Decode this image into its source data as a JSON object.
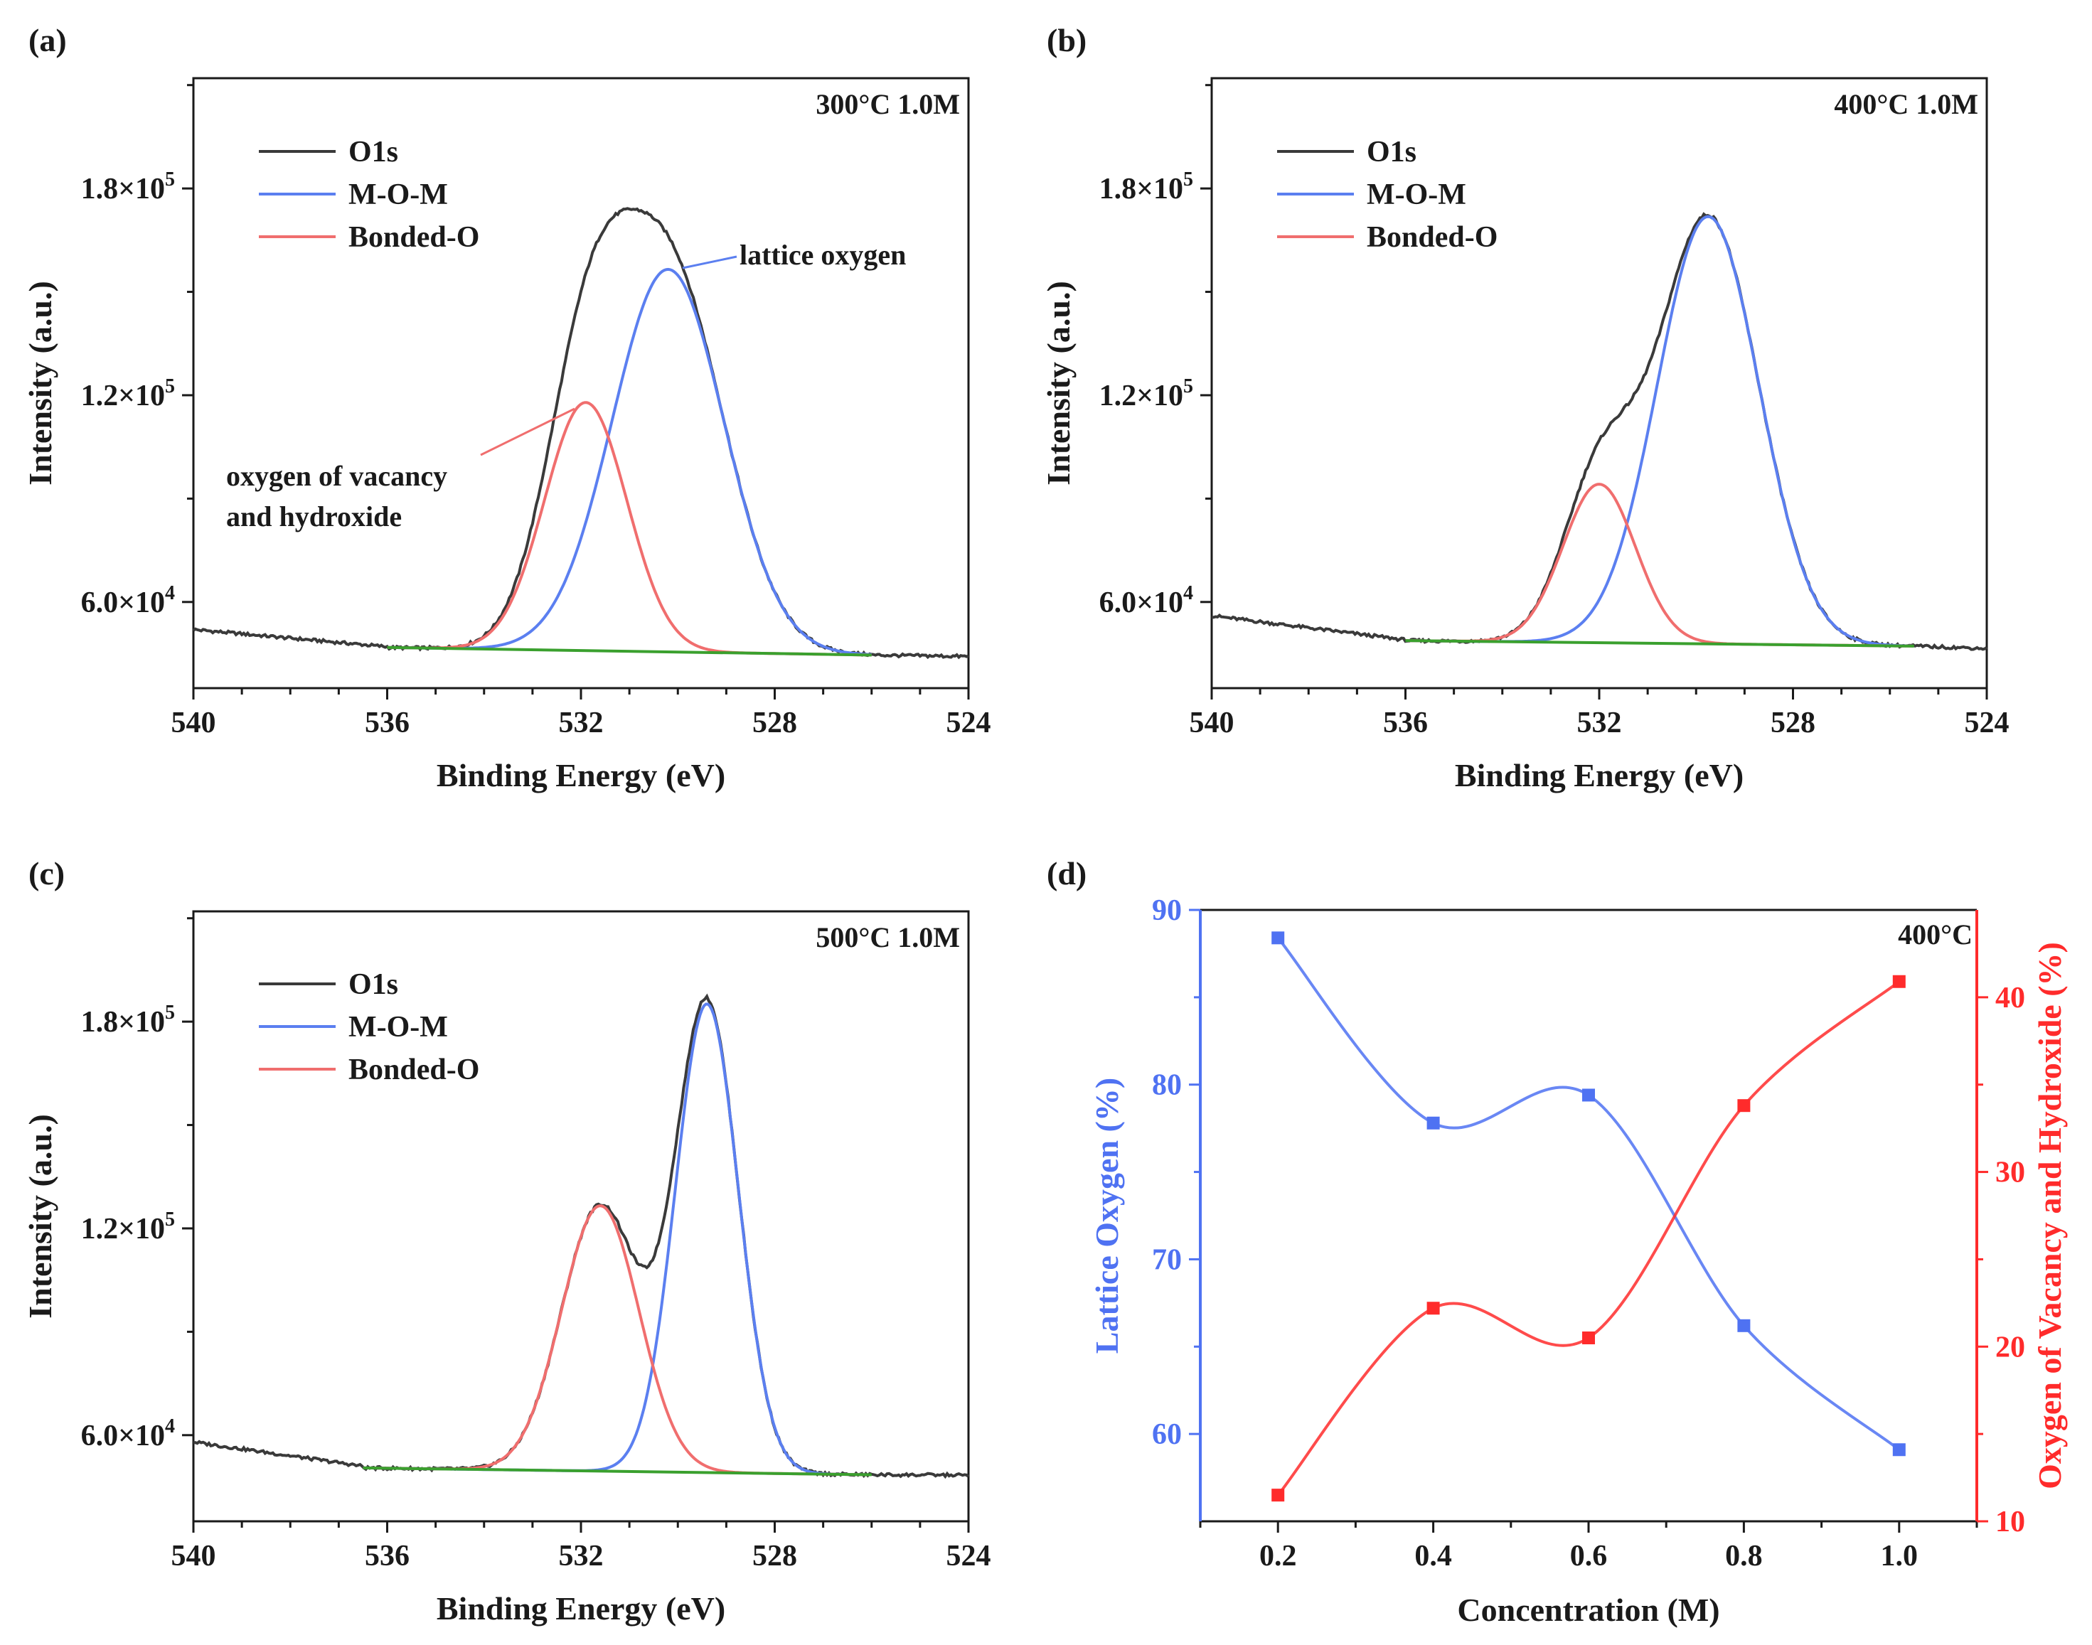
{
  "figure": {
    "colors": {
      "o1s": "#3a3a3a",
      "mom": "#5b7ff0",
      "bonded": "#f06e6e",
      "baseline": "#3aa02e",
      "axis": "#1a1a1a",
      "left_axis": "#4f72f2",
      "right_axis": "#ff2b2b"
    },
    "panels": [
      {
        "label": "(a)",
        "condition": "300°C 1.0M",
        "xlabel": "Binding Energy (eV)",
        "ylabel": "Intensity (a.u.)",
        "legend": [
          "O1s",
          "M-O-M",
          "Bonded-O"
        ],
        "annotation_lattice": "lattice oxygen",
        "annotation_vacancy_line1": "oxygen of vacancy",
        "annotation_vacancy_line2": "and hydroxide"
      },
      {
        "label": "(b)",
        "condition": "400°C 1.0M",
        "xlabel": "Binding Energy (eV)",
        "ylabel": "Intensity (a.u.)",
        "legend": [
          "O1s",
          "M-O-M",
          "Bonded-O"
        ]
      },
      {
        "label": "(c)",
        "condition": "500°C 1.0M",
        "xlabel": "Binding Energy (eV)",
        "ylabel": "Intensity (a.u.)",
        "legend": [
          "O1s",
          "M-O-M",
          "Bonded-O"
        ]
      },
      {
        "label": "(d)",
        "condition": "400°C",
        "xlabel": "Concentration (M)",
        "ylabel_left": "Lattice Oxygen (%)",
        "ylabel_right": "Oxygen of Vacancy and Hydroxide (%)"
      }
    ]
  },
  "chart_data": [
    {
      "type": "line",
      "title": "300°C 1.0M",
      "xlabel": "Binding Energy (eV)",
      "ylabel": "Intensity (a.u.)",
      "xlim": [
        540,
        524
      ],
      "ylim": [
        35000,
        212000
      ],
      "x_ticks": [
        "540",
        "536",
        "532",
        "528",
        "524"
      ],
      "y_ticks": [
        {
          "mantissa": "6.0×10",
          "exp": "4"
        },
        {
          "mantissa": "1.2×10",
          "exp": "5"
        },
        {
          "mantissa": "1.8×10",
          "exp": "5"
        }
      ],
      "y_tick_values": [
        60000,
        120000,
        180000
      ],
      "series": [
        {
          "name": "M-O-M",
          "type": "gaussian",
          "center": 530.2,
          "sigma": 1.15,
          "amplitude": 111000,
          "range": [
            536,
            526
          ]
        },
        {
          "name": "Bonded-O",
          "type": "gaussian",
          "center": 531.9,
          "sigma": 0.85,
          "amplitude": 72000,
          "range": [
            536,
            526
          ]
        }
      ],
      "background": {
        "x": [
          540,
          536,
          532,
          528,
          526,
          524
        ],
        "y": [
          52000,
          47000,
          46000,
          44800,
          44600,
          44200
        ]
      },
      "baseline": {
        "x": [
          536,
          526
        ],
        "y": [
          46800,
          44600
        ]
      }
    },
    {
      "type": "line",
      "title": "400°C 1.0M",
      "xlabel": "Binding Energy (eV)",
      "ylabel": "Intensity (a.u.)",
      "xlim": [
        540,
        524
      ],
      "ylim": [
        35000,
        212000
      ],
      "x_ticks": [
        "540",
        "536",
        "532",
        "528",
        "524"
      ],
      "y_ticks": [
        {
          "mantissa": "6.0×10",
          "exp": "4"
        },
        {
          "mantissa": "1.2×10",
          "exp": "5"
        },
        {
          "mantissa": "1.8×10",
          "exp": "5"
        }
      ],
      "y_tick_values": [
        60000,
        120000,
        180000
      ],
      "series": [
        {
          "name": "M-O-M",
          "type": "gaussian",
          "center": 529.75,
          "sigma": 1.05,
          "amplitude": 124000,
          "range": [
            536,
            525.5
          ]
        },
        {
          "name": "Bonded-O",
          "type": "gaussian",
          "center": 532.0,
          "sigma": 0.75,
          "amplitude": 46000,
          "range": [
            536,
            525.5
          ]
        }
      ],
      "background": {
        "x": [
          540,
          536,
          532,
          528,
          525.5,
          524
        ],
        "y": [
          56000,
          49000,
          48500,
          47500,
          47200,
          46500
        ]
      },
      "baseline": {
        "x": [
          536,
          525.5
        ],
        "y": [
          48800,
          47200
        ]
      }
    },
    {
      "type": "line",
      "title": "500°C 1.0M",
      "xlabel": "Binding Energy (eV)",
      "ylabel": "Intensity (a.u.)",
      "xlim": [
        540,
        524
      ],
      "ylim": [
        35000,
        212000
      ],
      "x_ticks": [
        "540",
        "536",
        "532",
        "528",
        "524"
      ],
      "y_ticks": [
        {
          "mantissa": "6.0×10",
          "exp": "4"
        },
        {
          "mantissa": "1.2×10",
          "exp": "5"
        },
        {
          "mantissa": "1.8×10",
          "exp": "5"
        }
      ],
      "y_tick_values": [
        60000,
        120000,
        180000
      ],
      "series": [
        {
          "name": "M-O-M",
          "type": "gaussian",
          "center": 529.4,
          "sigma": 0.65,
          "amplitude": 136000,
          "range": [
            536.5,
            526
          ]
        },
        {
          "name": "Bonded-O",
          "type": "gaussian",
          "center": 531.6,
          "sigma": 0.8,
          "amplitude": 77000,
          "range": [
            536.5,
            526
          ]
        }
      ],
      "background": {
        "x": [
          540,
          536.5,
          532,
          528,
          526,
          524
        ],
        "y": [
          58000,
          51000,
          50000,
          48800,
          48500,
          48400
        ]
      },
      "baseline": {
        "x": [
          536.5,
          526
        ],
        "y": [
          50500,
          48500
        ]
      }
    },
    {
      "type": "line",
      "title": "400°C",
      "xlabel": "Concentration (M)",
      "ylabel": "Lattice Oxygen (%)",
      "ylabel_right": "Oxygen of Vacancy and Hydroxide (%)",
      "xlim": [
        0.1,
        1.1
      ],
      "ylim": [
        55,
        90
      ],
      "ylim_right": [
        10,
        45
      ],
      "x_ticks": [
        "0.2",
        "0.4",
        "0.6",
        "0.8",
        "1.0"
      ],
      "x_tick_values": [
        0.2,
        0.4,
        0.6,
        0.8,
        1.0
      ],
      "y_ticks_left": [
        "60",
        "70",
        "80",
        "90"
      ],
      "y_ticks_left_values": [
        60,
        70,
        80,
        90
      ],
      "y_ticks_right": [
        "10",
        "20",
        "30",
        "40"
      ],
      "y_ticks_right_values": [
        10,
        20,
        30,
        40
      ],
      "categories": [
        0.2,
        0.4,
        0.6,
        0.8,
        1.0
      ],
      "series": [
        {
          "name": "Lattice Oxygen",
          "axis": "left",
          "values": [
            88.4,
            77.8,
            79.4,
            66.2,
            59.1
          ]
        },
        {
          "name": "Oxygen of Vacancy and Hydroxide",
          "axis": "right",
          "values": [
            11.5,
            22.2,
            20.5,
            33.8,
            40.9
          ]
        }
      ]
    }
  ]
}
